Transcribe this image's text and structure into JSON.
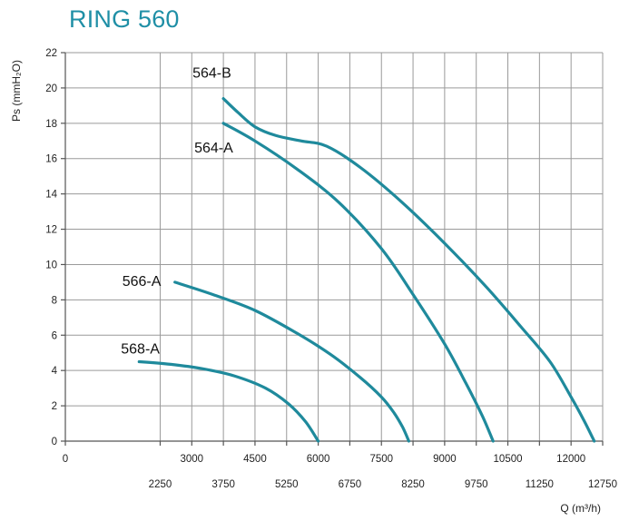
{
  "chart_data": {
    "type": "line",
    "title": "RING 560",
    "xlabel": "Q (m³/h)",
    "ylabel": "Ps (mmH₂O)",
    "xlim": [
      0,
      12750
    ],
    "ylim": [
      0,
      22
    ],
    "x_ticks_upper": [
      "0",
      "3000",
      "4500",
      "6000",
      "7500",
      "9000",
      "10500",
      "12000"
    ],
    "x_ticks_lower": [
      "2250",
      "3750",
      "5250",
      "6750",
      "8250",
      "9750",
      "11250",
      "12750"
    ],
    "y_ticks": [
      "0",
      "2",
      "4",
      "6",
      "8",
      "10",
      "12",
      "14",
      "16",
      "18",
      "20",
      "22"
    ],
    "grid": true,
    "series": [
      {
        "name": "564-B",
        "x": [
          3750,
          4100,
          4500,
          5000,
          5600,
          6200,
          7000,
          8000,
          9000,
          10000,
          10800,
          11500,
          12000,
          12300,
          12550
        ],
        "y": [
          19.4,
          18.6,
          17.8,
          17.3,
          17.0,
          16.7,
          15.5,
          13.5,
          11.2,
          8.7,
          6.5,
          4.5,
          2.5,
          1.2,
          0
        ]
      },
      {
        "name": "564-A",
        "x": [
          3750,
          4500,
          5500,
          6500,
          7500,
          8250,
          9000,
          9500,
          9900,
          10150
        ],
        "y": [
          18.0,
          17.0,
          15.4,
          13.5,
          10.9,
          8.3,
          5.5,
          3.3,
          1.4,
          0
        ]
      },
      {
        "name": "566-A",
        "x": [
          2600,
          3500,
          4500,
          5500,
          6300,
          7000,
          7500,
          7800,
          8000,
          8150
        ],
        "y": [
          9.0,
          8.3,
          7.4,
          6.1,
          4.9,
          3.6,
          2.5,
          1.6,
          0.8,
          0
        ]
      },
      {
        "name": "568-A",
        "x": [
          1750,
          2500,
          3250,
          4000,
          4750,
          5300,
          5700,
          6000
        ],
        "y": [
          4.5,
          4.35,
          4.1,
          3.7,
          3.0,
          2.1,
          1.1,
          0
        ]
      }
    ]
  }
}
